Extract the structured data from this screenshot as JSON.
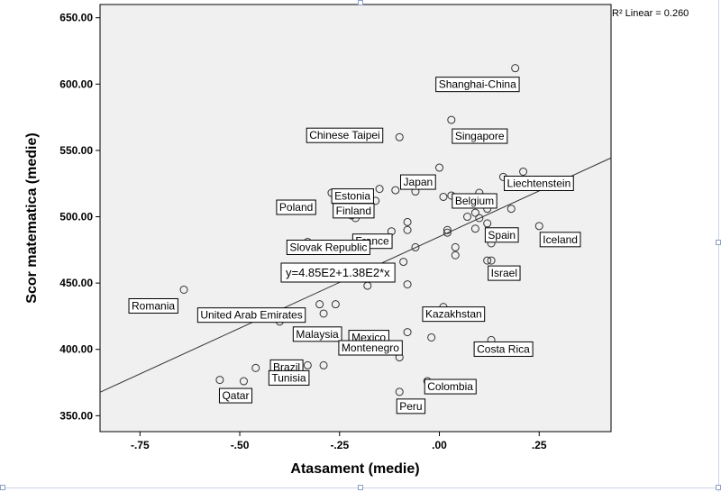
{
  "chart_data": {
    "type": "scatter",
    "xlabel": "Atasament (medie)",
    "ylabel": "Scor matematica (medie)",
    "xlim": [
      -0.85,
      0.43
    ],
    "ylim": [
      338,
      660
    ],
    "xticks": [
      -0.75,
      -0.5,
      -0.25,
      0.0,
      0.25
    ],
    "xtick_labels": [
      "-.75",
      "-.50",
      "-.25",
      ".00",
      ".25"
    ],
    "yticks": [
      350,
      400,
      450,
      500,
      550,
      600,
      650
    ],
    "ytick_labels": [
      "350.00",
      "400.00",
      "450.00",
      "500.00",
      "550.00",
      "600.00",
      "650.00"
    ],
    "grid": false,
    "fit": {
      "type": "linear",
      "intercept": 485,
      "slope": 138,
      "equation_label": "y=4.85E2+1.38E2*x",
      "r2_label": "R² Linear = 0.260"
    },
    "points": [
      {
        "x": 0.19,
        "y": 612,
        "label": "Shanghai-China"
      },
      {
        "x": 0.03,
        "y": 573,
        "label": "Singapore"
      },
      {
        "x": -0.1,
        "y": 560,
        "label": "Chinese Taipei"
      },
      {
        "x": 0.0,
        "y": 537,
        "label": "Japan"
      },
      {
        "x": 0.21,
        "y": 534,
        "label": "Liechtenstein"
      },
      {
        "x": 0.16,
        "y": 530
      },
      {
        "x": 0.03,
        "y": 516,
        "label": "Belgium"
      },
      {
        "x": -0.15,
        "y": 521,
        "label": "Estonia"
      },
      {
        "x": -0.11,
        "y": 520
      },
      {
        "x": -0.27,
        "y": 518,
        "label": "Poland"
      },
      {
        "x": -0.06,
        "y": 519
      },
      {
        "x": 0.01,
        "y": 515
      },
      {
        "x": 0.08,
        "y": 514
      },
      {
        "x": 0.1,
        "y": 518
      },
      {
        "x": 0.13,
        "y": 514
      },
      {
        "x": -0.16,
        "y": 512,
        "label": "Finland"
      },
      {
        "x": 0.12,
        "y": 506
      },
      {
        "x": 0.18,
        "y": 506
      },
      {
        "x": 0.09,
        "y": 503
      },
      {
        "x": 0.07,
        "y": 500
      },
      {
        "x": -0.22,
        "y": 501
      },
      {
        "x": -0.21,
        "y": 499
      },
      {
        "x": 0.1,
        "y": 499
      },
      {
        "x": 0.12,
        "y": 495
      },
      {
        "x": -0.08,
        "y": 496
      },
      {
        "x": 0.09,
        "y": 491,
        "label": "Spain"
      },
      {
        "x": 0.02,
        "y": 490
      },
      {
        "x": -0.08,
        "y": 490
      },
      {
        "x": 0.02,
        "y": 488
      },
      {
        "x": -0.12,
        "y": 489,
        "label": "France"
      },
      {
        "x": 0.25,
        "y": 493,
        "label": "Iceland"
      },
      {
        "x": 0.14,
        "y": 485
      },
      {
        "x": 0.13,
        "y": 480
      },
      {
        "x": -0.06,
        "y": 477
      },
      {
        "x": 0.04,
        "y": 477
      },
      {
        "x": -0.33,
        "y": 481,
        "label": "Slovak Republic"
      },
      {
        "x": 0.04,
        "y": 471
      },
      {
        "x": 0.12,
        "y": 467,
        "label": "Israel"
      },
      {
        "x": 0.13,
        "y": 467
      },
      {
        "x": -0.09,
        "y": 466
      },
      {
        "x": -0.18,
        "y": 448
      },
      {
        "x": -0.08,
        "y": 449
      },
      {
        "x": -0.64,
        "y": 445,
        "label": "Romania"
      },
      {
        "x": -0.26,
        "y": 434,
        "label": "United Arab Emirates"
      },
      {
        "x": -0.3,
        "y": 434
      },
      {
        "x": 0.01,
        "y": 432,
        "label": "Kazakhstan"
      },
      {
        "x": -0.29,
        "y": 427
      },
      {
        "x": -0.4,
        "y": 421,
        "label": "Malaysia"
      },
      {
        "x": -0.08,
        "y": 413,
        "label": "Mexico"
      },
      {
        "x": -0.2,
        "y": 410,
        "label": "Montenegro"
      },
      {
        "x": -0.02,
        "y": 409
      },
      {
        "x": -0.1,
        "y": 394
      },
      {
        "x": 0.13,
        "y": 407,
        "label": "Costa Rica"
      },
      {
        "x": -0.36,
        "y": 388,
        "label": "Brazil"
      },
      {
        "x": -0.33,
        "y": 388,
        "label": "Tunisia"
      },
      {
        "x": -0.29,
        "y": 388
      },
      {
        "x": -0.46,
        "y": 386
      },
      {
        "x": -0.55,
        "y": 377
      },
      {
        "x": -0.49,
        "y": 376,
        "label": "Qatar"
      },
      {
        "x": -0.03,
        "y": 376,
        "label": "Colombia"
      },
      {
        "x": -0.1,
        "y": 368,
        "label": "Peru"
      }
    ]
  }
}
